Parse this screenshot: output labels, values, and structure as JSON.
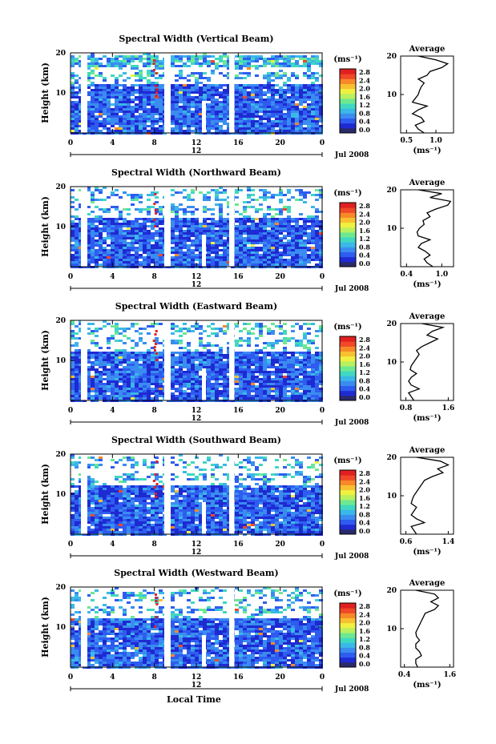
{
  "figure": {
    "xlabel": "Local Time",
    "date_label": "Jul 2008",
    "mid_tick_label": "12",
    "unit_label": "(ms⁻¹)",
    "avg_xunit": "(ms⁻¹)",
    "ylabel": "Height (km)",
    "avg_title": "Average"
  },
  "colorbar": {
    "ticks": [
      "0.0",
      "0.4",
      "0.8",
      "1.2",
      "1.6",
      "2.0",
      "2.4",
      "2.8"
    ],
    "colors": [
      "#2a2a6a",
      "#1e2ad2",
      "#2e5cf0",
      "#3a8cf0",
      "#3ab8e8",
      "#40d8c0",
      "#6ee890",
      "#b8f060",
      "#f0f040",
      "#f8c030",
      "#f88828",
      "#f04828",
      "#e02020"
    ]
  },
  "chart_data": [
    {
      "type": "heatmap",
      "title": "Spectral Width (Vertical Beam)",
      "x_ticks": [
        "0",
        "4",
        "8",
        "12",
        "16",
        "20",
        "0"
      ],
      "ylim": [
        0,
        20
      ],
      "y_ticks": [
        "10",
        "20"
      ],
      "average": {
        "title": "Average",
        "x_ticks": [
          "0.5",
          "1.0"
        ],
        "xlim": [
          0.4,
          1.3
        ],
        "y_ticks": [
          "10",
          "20"
        ],
        "profile": [
          0.8,
          0.7,
          0.65,
          0.8,
          0.75,
          0.6,
          0.7,
          0.85,
          0.6,
          0.65,
          0.7,
          0.72,
          0.75,
          0.8,
          0.7,
          0.85,
          0.9,
          1.1,
          1.2,
          1.0,
          0.7
        ]
      }
    },
    {
      "type": "heatmap",
      "title": "Spectral Width (Northward Beam)",
      "x_ticks": [
        "0",
        "4",
        "8",
        "12",
        "16",
        "20",
        "0"
      ],
      "ylim": [
        0,
        20
      ],
      "y_ticks": [
        "10",
        "20"
      ],
      "average": {
        "title": "Average",
        "x_ticks": [
          "0.4",
          "1.0"
        ],
        "xlim": [
          0.3,
          1.2
        ],
        "y_ticks": [
          "10",
          "20"
        ],
        "profile": [
          0.85,
          0.75,
          0.7,
          0.8,
          0.72,
          0.6,
          0.65,
          0.8,
          0.6,
          0.58,
          0.62,
          0.7,
          0.68,
          0.8,
          0.75,
          0.9,
          1.1,
          1.15,
          0.8,
          1.0,
          0.6
        ]
      }
    },
    {
      "type": "heatmap",
      "title": "Spectral Width (Eastward Beam)",
      "x_ticks": [
        "0",
        "4",
        "8",
        "12",
        "16",
        "20",
        "0"
      ],
      "ylim": [
        0,
        20
      ],
      "y_ticks": [
        "10",
        "20"
      ],
      "average": {
        "title": "Average",
        "x_ticks": [
          "0.8",
          "1.6"
        ],
        "xlim": [
          0.7,
          1.7
        ],
        "y_ticks": [
          "10",
          "20"
        ],
        "profile": [
          0.95,
          0.9,
          0.85,
          1.05,
          0.9,
          0.85,
          0.9,
          1.0,
          0.88,
          0.9,
          0.95,
          1.0,
          1.05,
          1.0,
          1.1,
          1.25,
          1.4,
          1.2,
          1.3,
          1.5,
          1.1
        ]
      }
    },
    {
      "type": "heatmap",
      "title": "Spectral Width (Southward Beam)",
      "x_ticks": [
        "0",
        "4",
        "8",
        "12",
        "16",
        "20",
        "0"
      ],
      "ylim": [
        0,
        20
      ],
      "y_ticks": [
        "10",
        "20"
      ],
      "average": {
        "title": "Average",
        "x_ticks": [
          "0.6",
          "1.4"
        ],
        "xlim": [
          0.5,
          1.5
        ],
        "y_ticks": [
          "10",
          "20"
        ],
        "profile": [
          0.8,
          0.75,
          0.7,
          0.95,
          0.8,
          0.7,
          0.75,
          0.8,
          0.7,
          0.72,
          0.75,
          0.8,
          0.85,
          0.9,
          0.95,
          1.1,
          1.3,
          1.2,
          1.4,
          1.25,
          0.8
        ]
      }
    },
    {
      "type": "heatmap",
      "title": "Spectral Width (Westward Beam)",
      "x_ticks": [
        "0",
        "4",
        "8",
        "12",
        "16",
        "20",
        "0"
      ],
      "ylim": [
        0,
        20
      ],
      "y_ticks": [
        "10",
        "20"
      ],
      "average": {
        "title": "Average",
        "x_ticks": [
          "0.4",
          "1.6"
        ],
        "xlim": [
          0.3,
          1.7
        ],
        "y_ticks": [
          "10",
          "20"
        ],
        "profile": [
          0.75,
          0.7,
          0.7,
          0.85,
          0.8,
          0.7,
          0.7,
          0.8,
          0.72,
          0.7,
          0.75,
          0.8,
          0.85,
          0.9,
          0.95,
          1.2,
          1.3,
          1.1,
          1.3,
          1.2,
          0.7
        ]
      }
    }
  ]
}
